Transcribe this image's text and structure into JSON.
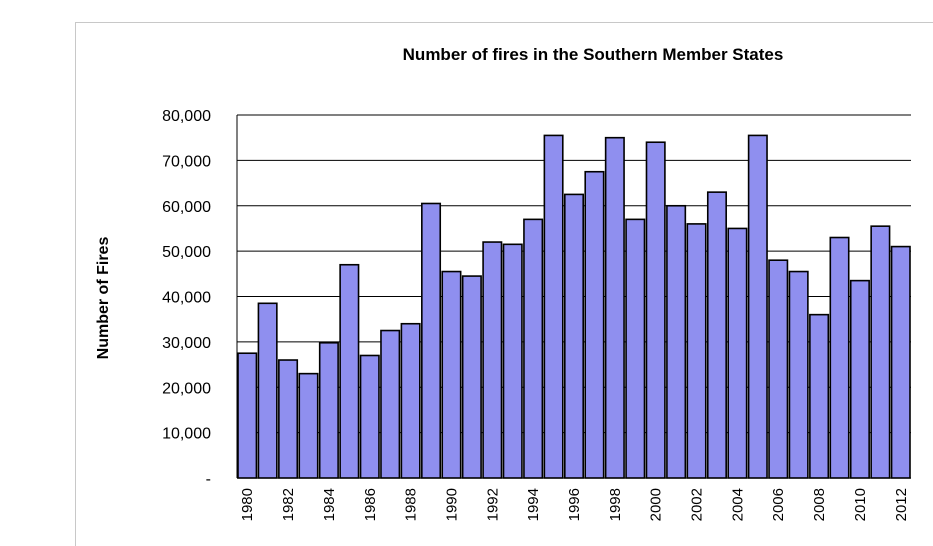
{
  "chart_data": {
    "type": "bar",
    "title": "Number of fires in the Southern Member States",
    "xlabel": "",
    "ylabel": "Number of Fires",
    "ylim": [
      0,
      80000
    ],
    "yticks": [
      0,
      10000,
      20000,
      30000,
      40000,
      50000,
      60000,
      70000,
      80000
    ],
    "ytick_labels": [
      "-",
      "10,000",
      "20,000",
      "30,000",
      "40,000",
      "50,000",
      "60,000",
      "70,000",
      "80,000"
    ],
    "grid": true,
    "bar_color": "#8f8fef",
    "categories": [
      "1980",
      "1981",
      "1982",
      "1983",
      "1984",
      "1985",
      "1986",
      "1987",
      "1988",
      "1989",
      "1990",
      "1991",
      "1992",
      "1993",
      "1994",
      "1995",
      "1996",
      "1997",
      "1998",
      "1999",
      "2000",
      "2001",
      "2002",
      "2003",
      "2004",
      "2005",
      "2006",
      "2007",
      "2008",
      "2009",
      "2010",
      "2011",
      "2012"
    ],
    "xtick_labels": [
      "1980",
      "1982",
      "1984",
      "1986",
      "1988",
      "1990",
      "1992",
      "1994",
      "1996",
      "1998",
      "2000",
      "2002",
      "2004",
      "2006",
      "2008",
      "2010",
      "2012"
    ],
    "values": [
      27500,
      38500,
      26000,
      23000,
      29800,
      47000,
      27000,
      32500,
      34000,
      60500,
      45500,
      44500,
      52000,
      51500,
      57000,
      75500,
      62500,
      67500,
      75000,
      57000,
      74000,
      60000,
      56000,
      63000,
      55000,
      75500,
      48000,
      45500,
      36000,
      53000,
      43500,
      55500,
      51000
    ]
  }
}
